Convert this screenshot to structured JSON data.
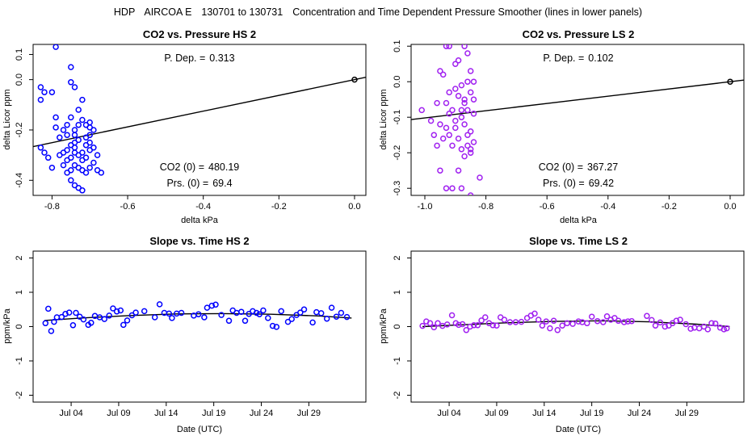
{
  "suptitle": {
    "site": "HDP",
    "project": "AIRCOA E",
    "range": "130701 to 130731",
    "desc": "Concentration and Time Dependent Pressure Smoother (lines in lower panels)"
  },
  "colors": {
    "hs": "#0000ff",
    "ls": "#a020f0",
    "fit": "#000000"
  },
  "chart_data": [
    {
      "id": "p1",
      "type": "scatter",
      "title": "CO2 vs. Pressure HS 2",
      "xlabel": "delta kPa",
      "ylabel": "delta Licor ppm",
      "xlim": [
        -0.85,
        0.03
      ],
      "ylim": [
        -0.46,
        0.14
      ],
      "xticks": [
        -0.8,
        -0.6,
        -0.4,
        -0.2,
        0.0
      ],
      "xtick_labels": [
        "-0.8",
        "-0.6",
        "-0.4",
        "-0.2",
        "0.0"
      ],
      "yticks": [
        -0.4,
        -0.2,
        0.0,
        0.1
      ],
      "ytick_labels": [
        "-0.4",
        "-0.2",
        "0.0",
        "0.1"
      ],
      "color_key": "hs",
      "fit": {
        "intercept": 0.0,
        "slope": 0.313
      },
      "anchor": {
        "x": 0.0,
        "y": 0.0
      },
      "annotations": [
        {
          "label": "P. Dep. =",
          "value": "0.313"
        },
        {
          "label": "CO2 (0) =",
          "value": "480.19"
        },
        {
          "label": "Prs. (0) =",
          "value": "69.4"
        }
      ],
      "points": [
        [
          -0.79,
          0.13
        ],
        [
          -0.83,
          -0.03
        ],
        [
          -0.82,
          -0.05
        ],
        [
          -0.83,
          -0.08
        ],
        [
          -0.8,
          -0.05
        ],
        [
          -0.75,
          0.05
        ],
        [
          -0.75,
          -0.01
        ],
        [
          -0.74,
          -0.03
        ],
        [
          -0.72,
          -0.08
        ],
        [
          -0.73,
          -0.12
        ],
        [
          -0.75,
          -0.15
        ],
        [
          -0.76,
          -0.18
        ],
        [
          -0.79,
          -0.19
        ],
        [
          -0.79,
          -0.15
        ],
        [
          -0.78,
          -0.23
        ],
        [
          -0.77,
          -0.2
        ],
        [
          -0.76,
          -0.22
        ],
        [
          -0.74,
          -0.2
        ],
        [
          -0.73,
          -0.18
        ],
        [
          -0.72,
          -0.16
        ],
        [
          -0.71,
          -0.18
        ],
        [
          -0.7,
          -0.17
        ],
        [
          -0.69,
          -0.2
        ],
        [
          -0.7,
          -0.22
        ],
        [
          -0.7,
          -0.25
        ],
        [
          -0.71,
          -0.26
        ],
        [
          -0.73,
          -0.24
        ],
        [
          -0.74,
          -0.25
        ],
        [
          -0.74,
          -0.27
        ],
        [
          -0.75,
          -0.26
        ],
        [
          -0.76,
          -0.28
        ],
        [
          -0.77,
          -0.29
        ],
        [
          -0.78,
          -0.3
        ],
        [
          -0.75,
          -0.31
        ],
        [
          -0.73,
          -0.3
        ],
        [
          -0.72,
          -0.32
        ],
        [
          -0.71,
          -0.31
        ],
        [
          -0.7,
          -0.28
        ],
        [
          -0.69,
          -0.27
        ],
        [
          -0.68,
          -0.3
        ],
        [
          -0.69,
          -0.33
        ],
        [
          -0.7,
          -0.35
        ],
        [
          -0.71,
          -0.37
        ],
        [
          -0.72,
          -0.36
        ],
        [
          -0.73,
          -0.35
        ],
        [
          -0.74,
          -0.34
        ],
        [
          -0.75,
          -0.36
        ],
        [
          -0.76,
          -0.37
        ],
        [
          -0.75,
          -0.4
        ],
        [
          -0.74,
          -0.42
        ],
        [
          -0.73,
          -0.43
        ],
        [
          -0.72,
          -0.44
        ],
        [
          -0.68,
          -0.36
        ],
        [
          -0.67,
          -0.37
        ],
        [
          -0.82,
          -0.29
        ],
        [
          -0.83,
          -0.27
        ],
        [
          -0.81,
          -0.31
        ],
        [
          -0.8,
          -0.35
        ],
        [
          -0.77,
          -0.34
        ],
        [
          -0.74,
          -0.29
        ],
        [
          -0.76,
          -0.32
        ],
        [
          -0.72,
          -0.29
        ],
        [
          -0.71,
          -0.23
        ],
        [
          -0.7,
          -0.19
        ],
        [
          -0.74,
          -0.22
        ]
      ]
    },
    {
      "id": "p2",
      "type": "scatter",
      "title": "CO2 vs. Pressure LS 2",
      "xlabel": "delta kPa",
      "ylabel": "delta Licor ppm",
      "xlim": [
        -1.045,
        0.045
      ],
      "ylim": [
        -0.32,
        0.105
      ],
      "xticks": [
        -1.0,
        -0.8,
        -0.6,
        -0.4,
        -0.2,
        0.0
      ],
      "xtick_labels": [
        "-1.0",
        "-0.8",
        "-0.6",
        "-0.4",
        "-0.2",
        "0.0"
      ],
      "yticks": [
        -0.3,
        -0.2,
        -0.1,
        0.0,
        0.1
      ],
      "ytick_labels": [
        "-0.3",
        "-0.2",
        "-0.1",
        "0.0",
        "0.1"
      ],
      "color_key": "ls",
      "fit": {
        "intercept": 0.0,
        "slope": 0.102
      },
      "anchor": {
        "x": 0.0,
        "y": 0.0
      },
      "annotations": [
        {
          "label": "P. Dep. =",
          "value": "0.102"
        },
        {
          "label": "CO2 (0) =",
          "value": "367.27"
        },
        {
          "label": "Prs. (0) =",
          "value": "69.42"
        }
      ],
      "points": [
        [
          -0.93,
          0.1
        ],
        [
          -0.92,
          0.1
        ],
        [
          -0.87,
          0.1
        ],
        [
          -0.89,
          0.06
        ],
        [
          -0.86,
          0.08
        ],
        [
          -0.95,
          0.03
        ],
        [
          -0.94,
          0.02
        ],
        [
          -0.9,
          0.05
        ],
        [
          -0.85,
          0.03
        ],
        [
          -0.84,
          0.0
        ],
        [
          -0.86,
          0.0
        ],
        [
          -0.88,
          -0.01
        ],
        [
          -0.9,
          -0.02
        ],
        [
          -0.92,
          -0.03
        ],
        [
          -0.89,
          -0.04
        ],
        [
          -0.87,
          -0.05
        ],
        [
          -0.85,
          -0.03
        ],
        [
          -0.84,
          -0.05
        ],
        [
          -0.93,
          -0.06
        ],
        [
          -0.96,
          -0.06
        ],
        [
          -0.91,
          -0.08
        ],
        [
          -0.88,
          -0.08
        ],
        [
          -0.86,
          -0.08
        ],
        [
          -0.84,
          -0.09
        ],
        [
          -1.01,
          -0.08
        ],
        [
          -0.98,
          -0.11
        ],
        [
          -0.95,
          -0.12
        ],
        [
          -0.93,
          -0.13
        ],
        [
          -0.9,
          -0.13
        ],
        [
          -0.87,
          -0.12
        ],
        [
          -0.85,
          -0.14
        ],
        [
          -0.97,
          -0.15
        ],
        [
          -0.94,
          -0.16
        ],
        [
          -0.92,
          -0.15
        ],
        [
          -0.89,
          -0.16
        ],
        [
          -0.86,
          -0.18
        ],
        [
          -0.84,
          -0.17
        ],
        [
          -0.96,
          -0.18
        ],
        [
          -0.91,
          -0.18
        ],
        [
          -0.88,
          -0.19
        ],
        [
          -0.85,
          -0.2
        ],
        [
          -0.87,
          -0.21
        ],
        [
          -0.95,
          -0.25
        ],
        [
          -0.89,
          -0.25
        ],
        [
          -0.82,
          -0.27
        ],
        [
          -0.93,
          -0.3
        ],
        [
          -0.91,
          -0.3
        ],
        [
          -0.88,
          -0.3
        ],
        [
          -0.85,
          -0.32
        ],
        [
          -0.87,
          -0.06
        ],
        [
          -0.88,
          -0.1
        ],
        [
          -0.9,
          -0.11
        ],
        [
          -0.92,
          -0.09
        ],
        [
          -0.86,
          -0.15
        ],
        [
          -0.85,
          -0.19
        ]
      ]
    },
    {
      "id": "p3",
      "type": "scatter",
      "title": "Slope vs. Time HS 2",
      "xlabel": "Date (UTC)",
      "ylabel": "ppm/kPa",
      "xlim": [
        0,
        35
      ],
      "ylim": [
        -2.2,
        2.2
      ],
      "xticks": [
        4,
        9,
        14,
        19,
        24,
        29
      ],
      "xtick_labels": [
        "Jul 04",
        "Jul 09",
        "Jul 14",
        "Jul 19",
        "Jul 24",
        "Jul 29"
      ],
      "yticks": [
        -2,
        -1,
        0,
        1,
        2
      ],
      "ytick_labels": [
        "-2",
        "-1",
        "0",
        "1",
        "2"
      ],
      "color_key": "hs",
      "smoother": [
        [
          1.2,
          0.18
        ],
        [
          5,
          0.25
        ],
        [
          10,
          0.32
        ],
        [
          15,
          0.37
        ],
        [
          20,
          0.38
        ],
        [
          25,
          0.36
        ],
        [
          30,
          0.31
        ],
        [
          33.5,
          0.25
        ]
      ],
      "points": [
        [
          1.3,
          0.1
        ],
        [
          1.6,
          0.52
        ],
        [
          1.9,
          -0.13
        ],
        [
          2.2,
          0.14
        ],
        [
          2.5,
          0.27
        ],
        [
          3.0,
          0.28
        ],
        [
          3.4,
          0.37
        ],
        [
          3.8,
          0.41
        ],
        [
          4.2,
          0.04
        ],
        [
          4.5,
          0.4
        ],
        [
          4.9,
          0.29
        ],
        [
          5.3,
          0.21
        ],
        [
          5.8,
          0.05
        ],
        [
          6.1,
          0.11
        ],
        [
          6.5,
          0.31
        ],
        [
          7.0,
          0.27
        ],
        [
          7.5,
          0.22
        ],
        [
          8.0,
          0.32
        ],
        [
          8.4,
          0.53
        ],
        [
          8.8,
          0.44
        ],
        [
          9.2,
          0.47
        ],
        [
          9.5,
          0.05
        ],
        [
          9.9,
          0.18
        ],
        [
          10.4,
          0.33
        ],
        [
          10.8,
          0.41
        ],
        [
          11.7,
          0.45
        ],
        [
          12.8,
          0.27
        ],
        [
          13.3,
          0.65
        ],
        [
          13.8,
          0.4
        ],
        [
          14.3,
          0.38
        ],
        [
          14.6,
          0.25
        ],
        [
          15.1,
          0.38
        ],
        [
          15.6,
          0.4
        ],
        [
          16.9,
          0.32
        ],
        [
          17.4,
          0.36
        ],
        [
          18.0,
          0.27
        ],
        [
          18.3,
          0.55
        ],
        [
          18.8,
          0.61
        ],
        [
          19.2,
          0.64
        ],
        [
          19.8,
          0.34
        ],
        [
          20.6,
          0.17
        ],
        [
          21.0,
          0.47
        ],
        [
          21.4,
          0.4
        ],
        [
          21.9,
          0.43
        ],
        [
          22.3,
          0.17
        ],
        [
          22.7,
          0.37
        ],
        [
          23.1,
          0.45
        ],
        [
          23.5,
          0.4
        ],
        [
          23.8,
          0.36
        ],
        [
          24.2,
          0.47
        ],
        [
          24.7,
          0.25
        ],
        [
          25.2,
          0.02
        ],
        [
          25.6,
          -0.01
        ],
        [
          26.1,
          0.45
        ],
        [
          26.8,
          0.14
        ],
        [
          27.2,
          0.22
        ],
        [
          27.7,
          0.34
        ],
        [
          28.1,
          0.41
        ],
        [
          28.5,
          0.5
        ],
        [
          29.4,
          0.12
        ],
        [
          29.8,
          0.42
        ],
        [
          30.3,
          0.39
        ],
        [
          30.9,
          0.23
        ],
        [
          31.4,
          0.55
        ],
        [
          31.9,
          0.29
        ],
        [
          32.4,
          0.4
        ],
        [
          33.0,
          0.28
        ]
      ]
    },
    {
      "id": "p4",
      "type": "scatter",
      "title": "Slope vs. Time LS 2",
      "xlabel": "Date (UTC)",
      "ylabel": "ppm/kPa",
      "xlim": [
        0,
        35
      ],
      "ylim": [
        -2.2,
        2.2
      ],
      "xticks": [
        4,
        9,
        14,
        19,
        24,
        29
      ],
      "xtick_labels": [
        "Jul 04",
        "Jul 09",
        "Jul 14",
        "Jul 19",
        "Jul 24",
        "Jul 29"
      ],
      "yticks": [
        -2,
        -1,
        0,
        1,
        2
      ],
      "ytick_labels": [
        "-2",
        "-1",
        "0",
        "1",
        "2"
      ],
      "color_key": "ls",
      "smoother": [
        [
          1.2,
          0.0
        ],
        [
          5,
          0.05
        ],
        [
          10,
          0.11
        ],
        [
          15,
          0.15
        ],
        [
          20,
          0.17
        ],
        [
          25,
          0.14
        ],
        [
          30,
          0.07
        ],
        [
          33.5,
          0.0
        ]
      ],
      "points": [
        [
          1.2,
          0.02
        ],
        [
          1.6,
          0.15
        ],
        [
          2.0,
          0.1
        ],
        [
          2.4,
          -0.02
        ],
        [
          2.8,
          0.1
        ],
        [
          3.3,
          0.02
        ],
        [
          3.8,
          0.06
        ],
        [
          4.3,
          0.33
        ],
        [
          4.7,
          0.1
        ],
        [
          5.0,
          0.05
        ],
        [
          5.4,
          0.07
        ],
        [
          5.8,
          -0.1
        ],
        [
          6.2,
          0.0
        ],
        [
          6.6,
          0.04
        ],
        [
          7.0,
          0.04
        ],
        [
          7.4,
          0.18
        ],
        [
          7.8,
          0.27
        ],
        [
          8.2,
          0.1
        ],
        [
          8.6,
          0.04
        ],
        [
          9.0,
          0.03
        ],
        [
          9.4,
          0.27
        ],
        [
          9.8,
          0.2
        ],
        [
          10.4,
          0.13
        ],
        [
          11.0,
          0.13
        ],
        [
          11.6,
          0.14
        ],
        [
          12.2,
          0.25
        ],
        [
          12.6,
          0.32
        ],
        [
          13.0,
          0.38
        ],
        [
          13.4,
          0.2
        ],
        [
          13.8,
          0.03
        ],
        [
          14.2,
          0.15
        ],
        [
          14.6,
          -0.05
        ],
        [
          15.0,
          0.17
        ],
        [
          15.4,
          -0.1
        ],
        [
          15.9,
          0.03
        ],
        [
          16.4,
          0.1
        ],
        [
          17.0,
          0.08
        ],
        [
          17.6,
          0.15
        ],
        [
          18.0,
          0.13
        ],
        [
          18.5,
          0.1
        ],
        [
          19.0,
          0.29
        ],
        [
          19.6,
          0.16
        ],
        [
          20.2,
          0.13
        ],
        [
          20.6,
          0.3
        ],
        [
          21.0,
          0.2
        ],
        [
          21.4,
          0.25
        ],
        [
          21.8,
          0.17
        ],
        [
          22.4,
          0.13
        ],
        [
          22.8,
          0.15
        ],
        [
          23.2,
          0.16
        ],
        [
          24.8,
          0.31
        ],
        [
          25.3,
          0.19
        ],
        [
          25.7,
          0.03
        ],
        [
          26.2,
          0.12
        ],
        [
          26.7,
          0.0
        ],
        [
          27.1,
          0.03
        ],
        [
          27.5,
          0.1
        ],
        [
          27.9,
          0.17
        ],
        [
          28.3,
          0.2
        ],
        [
          28.9,
          0.07
        ],
        [
          29.4,
          -0.06
        ],
        [
          29.8,
          -0.03
        ],
        [
          30.3,
          -0.05
        ],
        [
          30.8,
          0.0
        ],
        [
          31.2,
          -0.08
        ],
        [
          31.6,
          0.1
        ],
        [
          32.0,
          0.09
        ],
        [
          32.5,
          -0.03
        ],
        [
          32.9,
          -0.08
        ],
        [
          33.2,
          -0.05
        ]
      ]
    }
  ]
}
